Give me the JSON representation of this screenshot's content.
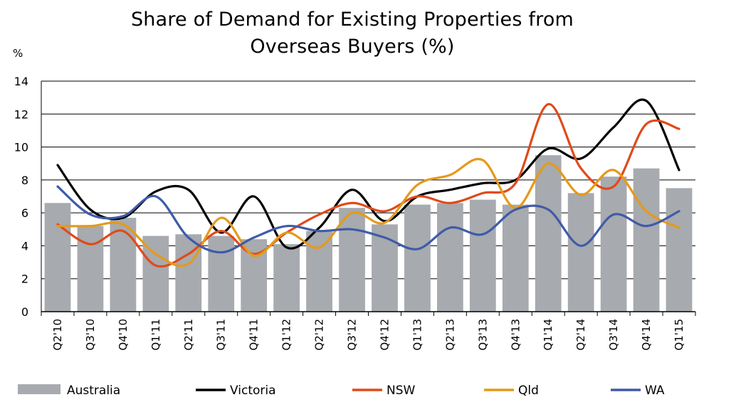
{
  "chart_data": {
    "type": "bar+line",
    "title_lines": [
      "Share of Demand for Existing Properties from",
      "Overseas Buyers (%)"
    ],
    "ylabel": "%",
    "ylim": [
      0,
      14
    ],
    "yticks": [
      "0",
      "2",
      "4",
      "6",
      "8",
      "10",
      "12",
      "14"
    ],
    "grid": true,
    "legend_position": "bottom",
    "categories": [
      "Q2'10",
      "Q3'10",
      "Q4'10",
      "Q1'11",
      "Q2'11",
      "Q3'11",
      "Q4'11",
      "Q1'12",
      "Q2'12",
      "Q3'12",
      "Q4'12",
      "Q1'13",
      "Q2'13",
      "Q3'13",
      "Q4'13",
      "Q1'14",
      "Q2'14",
      "Q3'14",
      "Q4'14",
      "Q1'15"
    ],
    "bars": {
      "name": "Australia",
      "color": "#a7aaae",
      "values": [
        6.6,
        5.2,
        5.7,
        4.6,
        4.7,
        4.6,
        4.4,
        4.1,
        4.9,
        6.3,
        5.3,
        6.5,
        6.6,
        6.8,
        6.5,
        9.5,
        7.2,
        8.2,
        8.7,
        7.5
      ]
    },
    "series": [
      {
        "name": "Victoria",
        "color": "#000000",
        "values": [
          8.9,
          6.2,
          5.7,
          7.3,
          7.4,
          4.8,
          7.0,
          3.9,
          5.1,
          7.4,
          5.5,
          7.0,
          7.4,
          7.8,
          8.0,
          9.9,
          9.3,
          11.2,
          12.8,
          8.6
        ]
      },
      {
        "name": "NSW",
        "color": "#e04a1a",
        "values": [
          5.3,
          4.1,
          4.9,
          2.8,
          3.5,
          4.9,
          3.5,
          4.8,
          5.9,
          6.6,
          6.1,
          7.0,
          6.6,
          7.2,
          7.8,
          12.6,
          8.7,
          7.6,
          11.4,
          11.1
        ]
      },
      {
        "name": "Qld",
        "color": "#e49a1c",
        "values": [
          5.2,
          5.2,
          5.3,
          3.5,
          2.9,
          5.7,
          3.4,
          4.8,
          3.9,
          6.0,
          5.4,
          7.7,
          8.3,
          9.2,
          6.3,
          9.0,
          7.1,
          8.6,
          6.1,
          5.1
        ]
      },
      {
        "name": "WA",
        "color": "#3f5ba8",
        "values": [
          7.6,
          5.9,
          5.8,
          7.0,
          4.5,
          3.6,
          4.5,
          5.2,
          4.9,
          5.0,
          4.5,
          3.8,
          5.1,
          4.7,
          6.2,
          6.2,
          4.0,
          5.9,
          5.2,
          6.1
        ]
      }
    ]
  }
}
